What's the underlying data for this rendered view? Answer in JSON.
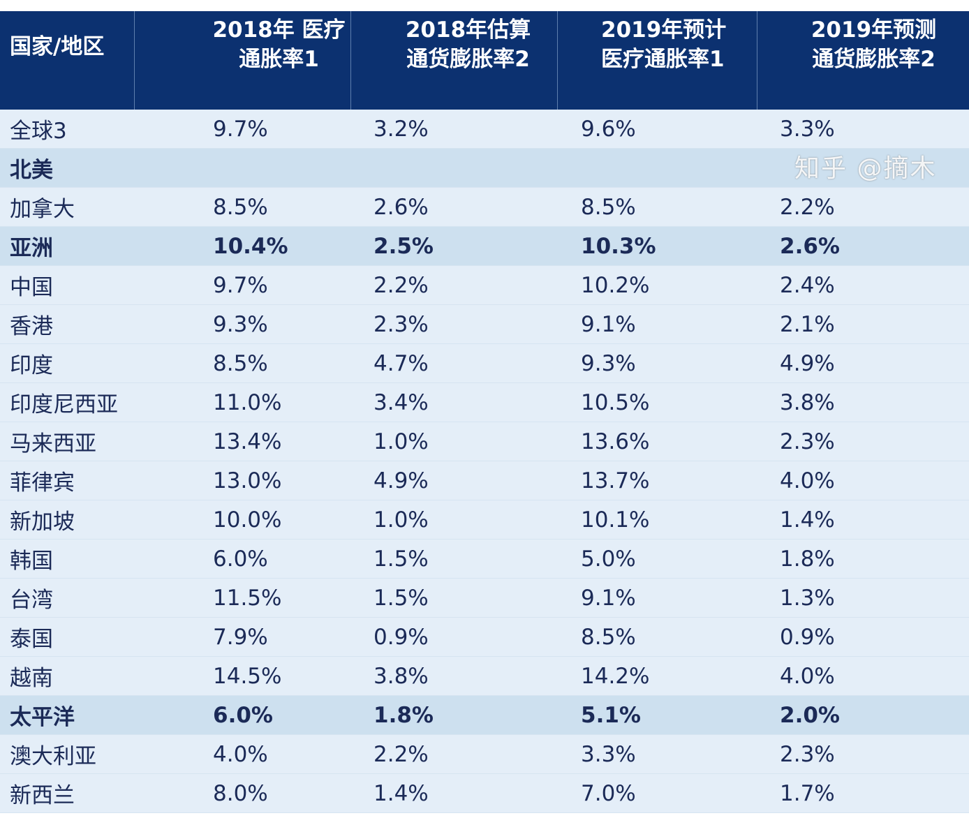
{
  "table": {
    "headers": [
      "国家/地区",
      "2018年 医疗通胀率1",
      "2018年估算 通货膨胀率2",
      "2019年预计 医疗通胀率1",
      "2019年预测 通货膨胀率2"
    ],
    "rows": [
      {
        "name": "全球3",
        "region": false,
        "values": [
          "9.7%",
          "3.2%",
          "9.6%",
          "3.3%"
        ]
      },
      {
        "name": "北美",
        "region": true,
        "values": [
          "",
          "",
          "",
          ""
        ]
      },
      {
        "name": "加拿大",
        "region": false,
        "values": [
          "8.5%",
          "2.6%",
          "8.5%",
          "2.2%"
        ]
      },
      {
        "name": "亚洲",
        "region": true,
        "values": [
          "10.4%",
          "2.5%",
          "10.3%",
          "2.6%"
        ]
      },
      {
        "name": "中国",
        "region": false,
        "values": [
          "9.7%",
          "2.2%",
          "10.2%",
          "2.4%"
        ]
      },
      {
        "name": "香港",
        "region": false,
        "values": [
          "9.3%",
          "2.3%",
          "9.1%",
          "2.1%"
        ]
      },
      {
        "name": "印度",
        "region": false,
        "values": [
          "8.5%",
          "4.7%",
          "9.3%",
          "4.9%"
        ]
      },
      {
        "name": "印度尼西亚",
        "region": false,
        "values": [
          "11.0%",
          "3.4%",
          "10.5%",
          "3.8%"
        ]
      },
      {
        "name": "马来西亚",
        "region": false,
        "values": [
          "13.4%",
          "1.0%",
          "13.6%",
          "2.3%"
        ]
      },
      {
        "name": "菲律宾",
        "region": false,
        "values": [
          "13.0%",
          "4.9%",
          "13.7%",
          "4.0%"
        ]
      },
      {
        "name": "新加坡",
        "region": false,
        "values": [
          "10.0%",
          "1.0%",
          "10.1%",
          "1.4%"
        ]
      },
      {
        "name": "韩国",
        "region": false,
        "values": [
          "6.0%",
          "1.5%",
          "5.0%",
          "1.8%"
        ]
      },
      {
        "name": "台湾",
        "region": false,
        "values": [
          "11.5%",
          "1.5%",
          "9.1%",
          "1.3%"
        ]
      },
      {
        "name": "泰国",
        "region": false,
        "values": [
          "7.9%",
          "0.9%",
          "8.5%",
          "0.9%"
        ]
      },
      {
        "name": "越南",
        "region": false,
        "values": [
          "14.5%",
          "3.8%",
          "14.2%",
          "4.0%"
        ]
      },
      {
        "name": "太平洋",
        "region": true,
        "values": [
          "6.0%",
          "1.8%",
          "5.1%",
          "2.0%"
        ]
      },
      {
        "name": "澳大利亚",
        "region": false,
        "values": [
          "4.0%",
          "2.2%",
          "3.3%",
          "2.3%"
        ]
      },
      {
        "name": "新西兰",
        "region": false,
        "values": [
          "8.0%",
          "1.4%",
          "7.0%",
          "1.7%"
        ]
      }
    ]
  },
  "watermark": "知乎 @摘木",
  "colors": {
    "header_bg": "#0c3170",
    "row_bg": "#e4eef8",
    "region_bg": "#cde0ef",
    "text": "#1b2a57"
  }
}
